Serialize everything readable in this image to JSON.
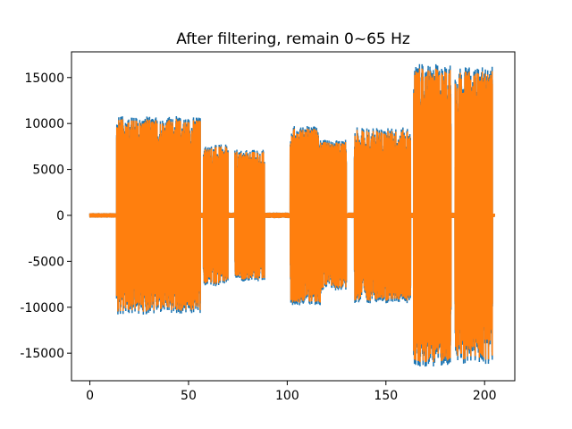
{
  "chart_data": {
    "type": "line",
    "title": "After filtering, remain 0~65 Hz",
    "xlabel": "",
    "ylabel": "",
    "xlim": [
      -9.3,
      215.3
    ],
    "ylim": [
      -18000,
      17800
    ],
    "xticks": [
      0,
      50,
      100,
      150,
      200
    ],
    "yticks": [
      -15000,
      -10000,
      -5000,
      0,
      5000,
      10000,
      15000
    ],
    "grid": false,
    "series": [
      {
        "color": "#1f77b4"
      },
      {
        "color": "#ff7f0e"
      }
    ],
    "x_range": [
      0,
      205
    ],
    "segments": [
      {
        "x": [
          0,
          13.5
        ],
        "amp": 250
      },
      {
        "x": [
          13.5,
          56
        ],
        "amp": 10500
      },
      {
        "x": [
          56,
          57.5
        ],
        "amp": 300
      },
      {
        "x": [
          57.5,
          70
        ],
        "amp": 7500
      },
      {
        "x": [
          70,
          73.5
        ],
        "amp": 300
      },
      {
        "x": [
          73.5,
          88.5
        ],
        "amp": 7000
      },
      {
        "x": [
          88.5,
          101.5
        ],
        "amp": 300
      },
      {
        "x": [
          101.5,
          117
        ],
        "amp": 9500
      },
      {
        "x": [
          117,
          130
        ],
        "amp": 8000
      },
      {
        "x": [
          130,
          134
        ],
        "amp": 300
      },
      {
        "x": [
          134,
          162.5
        ],
        "amp": 9300
      },
      {
        "x": [
          162.5,
          164
        ],
        "amp": 300
      },
      {
        "x": [
          164,
          183
        ],
        "amp": 16000
      },
      {
        "x": [
          183,
          185
        ],
        "amp": 300
      },
      {
        "x": [
          185,
          204
        ],
        "amp": 15700
      },
      {
        "x": [
          204,
          205
        ],
        "amp": 200
      }
    ]
  }
}
